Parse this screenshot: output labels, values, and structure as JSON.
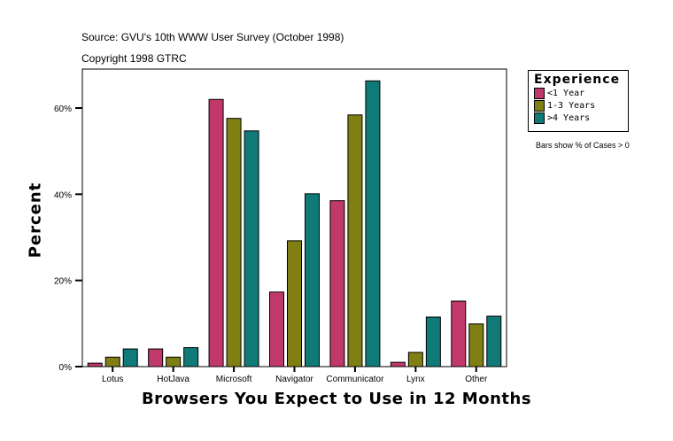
{
  "source": "Source: GVU's 10th WWW User Survey (October 1998)",
  "copyright": "Copyright 1998 GTRC",
  "note": "Bars show % of Cases > 0",
  "chart_data": {
    "type": "bar",
    "xlabel": "Browsers You Expect to Use in 12 Months",
    "ylabel": "Percent",
    "ylim": [
      0,
      69
    ],
    "yticks": [
      "0%",
      "20%",
      "40%",
      "60%"
    ],
    "ytick_values": [
      0,
      20,
      40,
      60
    ],
    "legend_title": "Experience",
    "legend_position": "right",
    "categories": [
      "Lotus",
      "HotJava",
      "Microsoft",
      "Navigator",
      "Communicator",
      "Lynx",
      "Other"
    ],
    "series": [
      {
        "name": "<1 Year",
        "color": "#c0396a",
        "values": [
          0.8,
          4.1,
          62.0,
          17.3,
          38.5,
          1.0,
          15.2
        ]
      },
      {
        "name": "1-3 Years",
        "color": "#7f7f14",
        "values": [
          2.2,
          2.2,
          57.6,
          29.2,
          58.4,
          3.3,
          9.9
        ]
      },
      {
        "name": ">4 Years",
        "color": "#107a78",
        "values": [
          4.1,
          4.4,
          54.7,
          40.1,
          66.3,
          11.5,
          11.7
        ]
      }
    ]
  }
}
